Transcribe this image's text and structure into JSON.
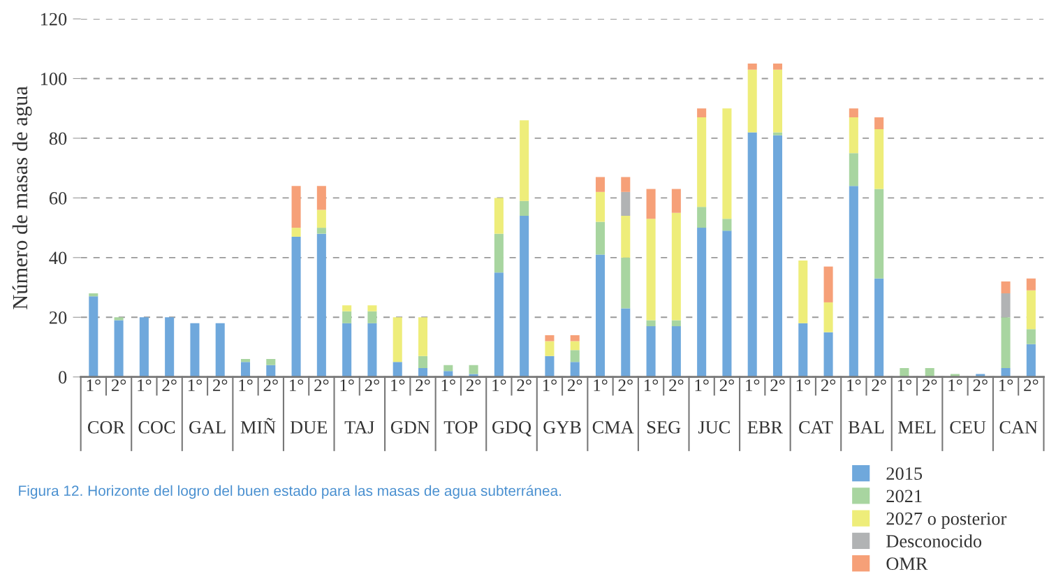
{
  "chart_data": {
    "type": "bar",
    "stacked": true,
    "ylabel": "Número de masas de agua",
    "categories": [
      "1°",
      "2°",
      "1°",
      "2°",
      "1°",
      "2°",
      "1°",
      "2°",
      "1°",
      "2°",
      "1°",
      "2°",
      "1°",
      "2°",
      "1°",
      "2°",
      "1°",
      "2°",
      "1°",
      "2°",
      "1°",
      "2°",
      "1°",
      "2°",
      "1°",
      "2°",
      "1°",
      "2°",
      "1°",
      "2°",
      "1°",
      "2°",
      "1°",
      "2°",
      "1°",
      "2°",
      "1°",
      "2°"
    ],
    "series": [
      {
        "name": "2015",
        "color": "#6fa8dc",
        "values": [
          27,
          19,
          20,
          20,
          18,
          18,
          5,
          4,
          47,
          48,
          18,
          18,
          5,
          3,
          2,
          1,
          35,
          54,
          7,
          5,
          41,
          23,
          17,
          17,
          50,
          49,
          82,
          81,
          18,
          15,
          64,
          33,
          0,
          0,
          0,
          1,
          3,
          11
        ]
      },
      {
        "name": "2021",
        "color": "#a8d5a0",
        "values": [
          1,
          1,
          0,
          0,
          0,
          0,
          1,
          2,
          0,
          2,
          4,
          4,
          0,
          4,
          2,
          3,
          13,
          5,
          0,
          4,
          11,
          17,
          2,
          2,
          7,
          4,
          0,
          1,
          0,
          0,
          11,
          30,
          3,
          3,
          1,
          0,
          17,
          5
        ]
      },
      {
        "name": "2027 o posterior",
        "color": "#eeed7a",
        "values": [
          0,
          0,
          0,
          0,
          0,
          0,
          0,
          0,
          3,
          6,
          2,
          2,
          15,
          13,
          0,
          0,
          12,
          27,
          5,
          3,
          10,
          14,
          34,
          36,
          30,
          37,
          21,
          21,
          21,
          10,
          12,
          20,
          0,
          0,
          0,
          0,
          0,
          13
        ]
      },
      {
        "name": "Desconocido",
        "color": "#b1b3b4",
        "values": [
          0,
          0,
          0,
          0,
          0,
          0,
          0,
          0,
          0,
          0,
          0,
          0,
          0,
          0,
          0,
          0,
          0,
          0,
          0,
          0,
          0,
          8,
          0,
          0,
          0,
          0,
          0,
          0,
          0,
          0,
          0,
          0,
          0,
          0,
          0,
          0,
          8,
          0
        ]
      },
      {
        "name": "OMR",
        "color": "#f6a078",
        "values": [
          0,
          0,
          0,
          0,
          0,
          0,
          0,
          0,
          14,
          8,
          0,
          0,
          0,
          0,
          0,
          0,
          0,
          0,
          2,
          2,
          5,
          5,
          10,
          8,
          3,
          0,
          2,
          2,
          0,
          12,
          3,
          4,
          0,
          0,
          0,
          0,
          4,
          4
        ]
      }
    ],
    "ylim": [
      0,
      120
    ],
    "yticks": [
      0,
      20,
      40,
      60,
      80,
      100,
      120
    ],
    "grid": "y",
    "legend": "bottom right",
    "annotations": [
      "COR",
      "COC",
      "GAL",
      "MIÑ",
      "DUE",
      "TAJ",
      "GDN",
      "TOP",
      "GDQ",
      "GYB",
      "CMA",
      "SEG",
      "JUC",
      "EBR",
      "CAT",
      "BAL",
      "MEL",
      "CEU",
      "CAN",
      "Figura 12. Horizonte del logro del buen estado para las masas de agua subterránea."
    ]
  }
}
